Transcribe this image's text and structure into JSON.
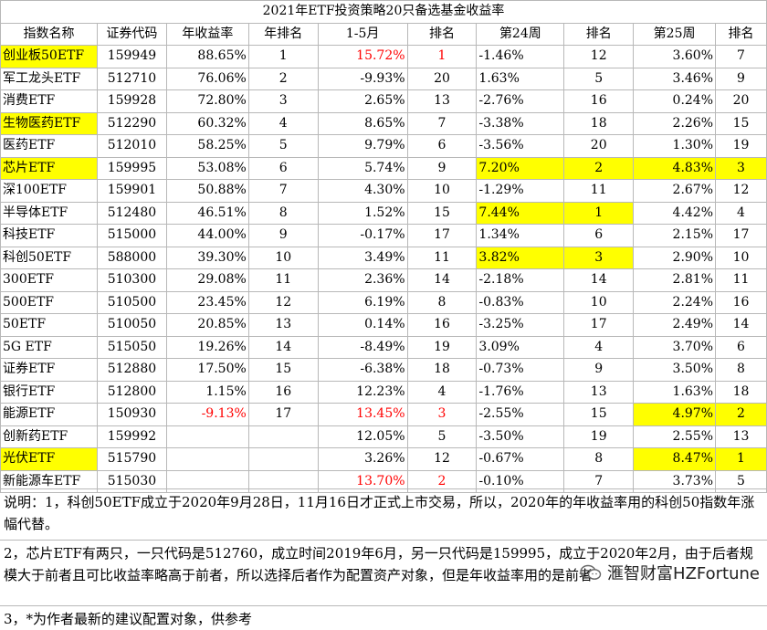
{
  "title": "2021年ETF投资策略20只备选基金收益率",
  "headers": [
    "指数名称",
    "证券代码",
    "年收益率",
    "年排名",
    "1-5月",
    "排名",
    "第24周",
    "排名",
    "第25周",
    "排名"
  ],
  "rows": [
    {
      "name": "创业板50ETF",
      "code": "159949",
      "annual": "88.65%",
      "arank": "1",
      "m15": "15.72%",
      "m15rank": "1",
      "w24": "-1.46%",
      "w24rank": "12",
      "w25": "3.60%",
      "w25rank": "7",
      "hl_name": true,
      "red_m15": true,
      "red_m15rank": true
    },
    {
      "name": "军工龙头ETF",
      "code": "512710",
      "annual": "76.06%",
      "arank": "2",
      "m15": "-9.93%",
      "m15rank": "20",
      "w24": "1.63%",
      "w24rank": "5",
      "w25": "3.46%",
      "w25rank": "9"
    },
    {
      "name": "消费ETF",
      "code": "159928",
      "annual": "72.80%",
      "arank": "3",
      "m15": "2.65%",
      "m15rank": "13",
      "w24": "-2.76%",
      "w24rank": "16",
      "w25": "0.24%",
      "w25rank": "20"
    },
    {
      "name": "生物医药ETF",
      "code": "512290",
      "annual": "60.32%",
      "arank": "4",
      "m15": "8.65%",
      "m15rank": "7",
      "w24": "-3.38%",
      "w24rank": "18",
      "w25": "2.26%",
      "w25rank": "15",
      "hl_name": true
    },
    {
      "name": "医药ETF",
      "code": "512010",
      "annual": "58.25%",
      "arank": "5",
      "m15": "9.79%",
      "m15rank": "6",
      "w24": "-3.56%",
      "w24rank": "20",
      "w25": "1.30%",
      "w25rank": "19"
    },
    {
      "name": "芯片ETF",
      "code": "159995",
      "annual": "53.08%",
      "arank": "6",
      "m15": "5.74%",
      "m15rank": "9",
      "w24": "7.20%",
      "w24rank": "2",
      "w25": "4.83%",
      "w25rank": "3",
      "hl_name": true,
      "hl_w24": true,
      "hl_w25": true
    },
    {
      "name": "深100ETF",
      "code": "159901",
      "annual": "50.88%",
      "arank": "7",
      "m15": "4.30%",
      "m15rank": "10",
      "w24": "-1.29%",
      "w24rank": "11",
      "w25": "2.67%",
      "w25rank": "12"
    },
    {
      "name": "半导体ETF",
      "code": "512480",
      "annual": "46.51%",
      "arank": "8",
      "m15": "1.52%",
      "m15rank": "15",
      "w24": "7.44%",
      "w24rank": "1",
      "w25": "4.42%",
      "w25rank": "4",
      "hl_w24": true
    },
    {
      "name": "科技ETF",
      "code": "515000",
      "annual": "44.00%",
      "arank": "9",
      "m15": "-0.17%",
      "m15rank": "17",
      "w24": "1.34%",
      "w24rank": "6",
      "w25": "2.15%",
      "w25rank": "17"
    },
    {
      "name": "科创50ETF",
      "code": "588000",
      "annual": "39.30%",
      "arank": "10",
      "m15": "3.49%",
      "m15rank": "11",
      "w24": "3.82%",
      "w24rank": "3",
      "w25": "2.90%",
      "w25rank": "10",
      "hl_w24": true
    },
    {
      "name": "300ETF",
      "code": "510300",
      "annual": "29.08%",
      "arank": "11",
      "m15": "2.36%",
      "m15rank": "14",
      "w24": "-2.18%",
      "w24rank": "14",
      "w25": "2.81%",
      "w25rank": "11"
    },
    {
      "name": "500ETF",
      "code": "510500",
      "annual": "23.45%",
      "arank": "12",
      "m15": "6.19%",
      "m15rank": "8",
      "w24": "-0.83%",
      "w24rank": "10",
      "w25": "2.24%",
      "w25rank": "16"
    },
    {
      "name": "50ETF",
      "code": "510050",
      "annual": "20.85%",
      "arank": "13",
      "m15": "0.14%",
      "m15rank": "16",
      "w24": "-3.25%",
      "w24rank": "17",
      "w25": "2.49%",
      "w25rank": "14"
    },
    {
      "name": "5G ETF",
      "code": "515050",
      "annual": "19.26%",
      "arank": "14",
      "m15": "-8.49%",
      "m15rank": "19",
      "w24": "3.09%",
      "w24rank": "4",
      "w25": "3.70%",
      "w25rank": "6"
    },
    {
      "name": "证券ETF",
      "code": "512880",
      "annual": "17.50%",
      "arank": "15",
      "m15": "-6.38%",
      "m15rank": "18",
      "w24": "-0.73%",
      "w24rank": "9",
      "w25": "3.50%",
      "w25rank": "8"
    },
    {
      "name": "银行ETF",
      "code": "512800",
      "annual": "1.15%",
      "arank": "16",
      "m15": "12.23%",
      "m15rank": "4",
      "w24": "-1.76%",
      "w24rank": "13",
      "w25": "1.63%",
      "w25rank": "18"
    },
    {
      "name": "能源ETF",
      "code": "150930",
      "annual": "-9.13%",
      "arank": "17",
      "m15": "13.45%",
      "m15rank": "3",
      "w24": "-2.55%",
      "w24rank": "15",
      "w25": "4.97%",
      "w25rank": "2",
      "red_annual": true,
      "red_m15": true,
      "red_m15rank": true,
      "hl_w25": true
    },
    {
      "name": "创新药ETF",
      "code": "159992",
      "annual": "",
      "arank": "",
      "m15": "12.05%",
      "m15rank": "5",
      "w24": "-3.50%",
      "w24rank": "19",
      "w25": "2.55%",
      "w25rank": "13"
    },
    {
      "name": "光伏ETF",
      "code": "515790",
      "annual": "",
      "arank": "",
      "m15": "3.26%",
      "m15rank": "12",
      "w24": "-0.67%",
      "w24rank": "8",
      "w25": "8.47%",
      "w25rank": "1",
      "hl_name": true,
      "hl_w25": true
    },
    {
      "name": "新能源车ETF",
      "code": "515030",
      "annual": "",
      "arank": "",
      "m15": "13.70%",
      "m15rank": "2",
      "w24": "-0.10%",
      "w24rank": "7",
      "w25": "3.73%",
      "w25rank": "5",
      "red_m15": true,
      "red_m15rank": true
    }
  ],
  "notes": {
    "n1": "说明：1，科创50ETF成立于2020年9月28日，11月16日才正式上市交易，所以，2020年的年收益率用的科创50指数年涨幅代替。",
    "n2": "2，芯片ETF有两只，一只代码是512760，成立时间2019年6月，另一只代码是159995，成立于2020年2月，由于后者规模大于前者且可比收益率略高于前者，所以选择后者作为配置资产对象，但是年收益率用的是前者",
    "n3": "3，*为作者最新的建议配置对象，供参考"
  },
  "watermark": "滙智财富HZFortune",
  "colors": {
    "highlight": "#ffff00",
    "negative": "#ff0000",
    "grid": "#b8b8b8"
  }
}
